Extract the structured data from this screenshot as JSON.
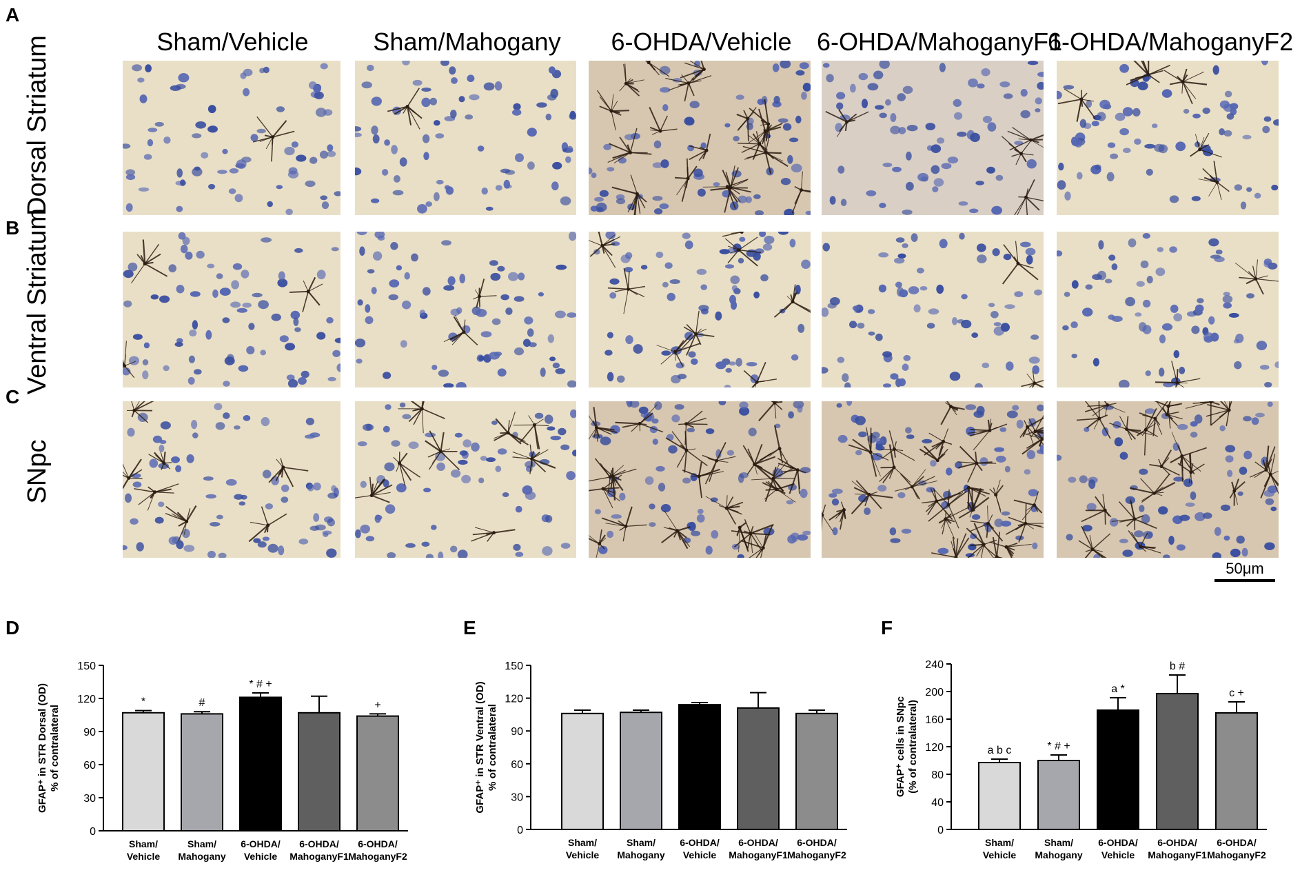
{
  "figure": {
    "panel_letters": {
      "A": "A",
      "B": "B",
      "C": "C",
      "D": "D",
      "E": "E",
      "F": "F"
    },
    "columns": [
      "Sham/Vehicle",
      "Sham/Mahogany",
      "6-OHDA/Vehicle",
      "6-OHDA/MahoganyF1",
      "6-OHDA/MahoganyF2"
    ],
    "rows": [
      "Dorsal Striatum",
      "Ventral Striatum",
      "SNpc"
    ],
    "scale_bar": "50μm"
  },
  "colors": {
    "sham_vehicle": "#d9d9d9",
    "sham_mahogany": "#a6a6ad",
    "ohda_vehicle": "#000000",
    "ohda_f1": "#5f5f5f",
    "ohda_f2": "#8c8c8c",
    "tissue_bg": "#e9dfc6",
    "nucleus": "#3a4fa0",
    "astrocyte": "#2c1d12"
  },
  "chart_data": [
    {
      "panel": "D",
      "type": "bar",
      "ylabel_line1": "GFAP⁺ in STR Dorsal (OD)",
      "ylabel_line2": "% of contralateral",
      "categories": [
        [
          "Sham/",
          "Vehicle"
        ],
        [
          "Sham/",
          "Mahogany"
        ],
        [
          "6-OHDA/",
          "Vehicle"
        ],
        [
          "6-OHDA/",
          "MahoganyF1"
        ],
        [
          "6-OHDA/",
          "MahoganyF2"
        ]
      ],
      "values": [
        107,
        106,
        121,
        107,
        104
      ],
      "errors": [
        2,
        2,
        4,
        15,
        2
      ],
      "annotations": [
        "*",
        "#",
        "* # +",
        "",
        "+"
      ],
      "ylim": [
        0,
        150
      ],
      "yticks": [
        0,
        30,
        60,
        90,
        120,
        150
      ]
    },
    {
      "panel": "E",
      "type": "bar",
      "ylabel_line1": "GFAP⁺ in STR Ventral (OD)",
      "ylabel_line2": "% of contralateral",
      "categories": [
        [
          "Sham/",
          "Vehicle"
        ],
        [
          "Sham/",
          "Mahogany"
        ],
        [
          "6-OHDA/",
          "Vehicle"
        ],
        [
          "6-OHDA/",
          "MahoganyF1"
        ],
        [
          "6-OHDA/",
          "MahoganyF2"
        ]
      ],
      "values": [
        106,
        107,
        114,
        111,
        106
      ],
      "errors": [
        3,
        2,
        2,
        14,
        3
      ],
      "annotations": [
        "",
        "",
        "",
        "",
        ""
      ],
      "ylim": [
        0,
        150
      ],
      "yticks": [
        0,
        30,
        60,
        90,
        120,
        150
      ]
    },
    {
      "panel": "F",
      "type": "bar",
      "ylabel_line1": "GFAP⁺ cells in SNpc",
      "ylabel_line2": "(% of contralateral)",
      "categories": [
        [
          "Sham/",
          "Vehicle"
        ],
        [
          "Sham/",
          "Mahogany"
        ],
        [
          "6-OHDA/",
          "Vehicle"
        ],
        [
          "6-OHDA/",
          "MahoganyF1"
        ],
        [
          "6-OHDA/",
          "MahoganyF2"
        ]
      ],
      "values": [
        97,
        100,
        173,
        197,
        169
      ],
      "errors": [
        5,
        8,
        18,
        27,
        16
      ],
      "annotations": [
        "a b c",
        "* # +",
        "a *",
        "b #",
        "c +"
      ],
      "ylim": [
        0,
        240
      ],
      "yticks": [
        0,
        40,
        80,
        120,
        160,
        200,
        240
      ]
    }
  ]
}
